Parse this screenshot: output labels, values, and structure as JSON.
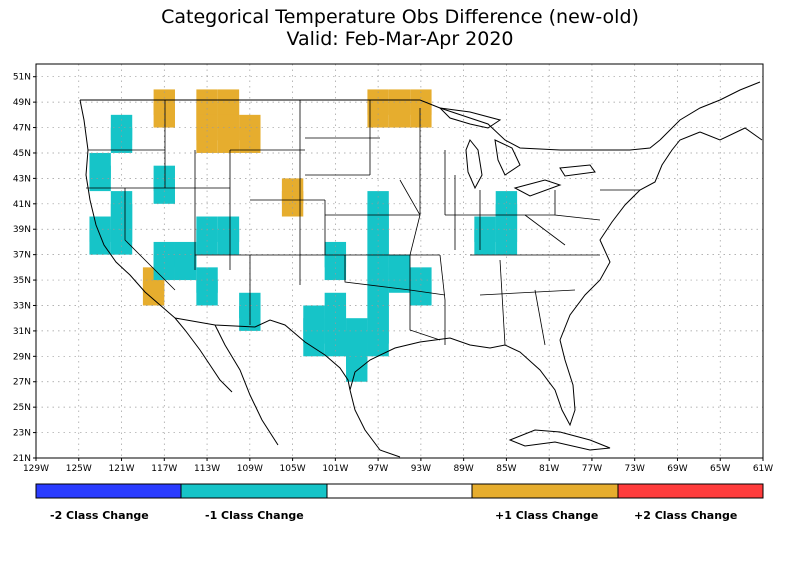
{
  "title": {
    "line1": "Categorical Temperature Obs Difference (new-old)",
    "line2": "Valid: Feb-Mar-Apr 2020"
  },
  "colors": {
    "minus2": "#2a3cff",
    "minus1": "#16c4c8",
    "zero": "#ffffff",
    "plus1": "#e6ad2e",
    "plus2": "#ff3c3c",
    "grid": "#9a9a9a",
    "outline": "#000000"
  },
  "axes": {
    "lon_min": -129,
    "lon_max": -61,
    "lat_min": 21,
    "lat_max": 52,
    "lon_ticks": [
      "129W",
      "125W",
      "121W",
      "117W",
      "113W",
      "109W",
      "105W",
      "101W",
      "97W",
      "93W",
      "89W",
      "85W",
      "81W",
      "77W",
      "73W",
      "69W",
      "65W",
      "61W"
    ],
    "lat_ticks": [
      "51N",
      "49N",
      "47N",
      "45N",
      "43N",
      "41N",
      "39N",
      "37N",
      "35N",
      "33N",
      "31N",
      "29N",
      "27N",
      "25N",
      "23N",
      "21N"
    ]
  },
  "legend": {
    "labels": [
      "-2 Class Change",
      "-1 Class Change",
      "+1 Class Change",
      "+2 Class Change"
    ]
  },
  "cells": {
    "plus1": [
      [
        -117,
        49
      ],
      [
        -117,
        48
      ],
      [
        -113,
        49
      ],
      [
        -111,
        49
      ],
      [
        -113,
        48
      ],
      [
        -111,
        48
      ],
      [
        -113,
        47
      ],
      [
        -111,
        47
      ],
      [
        -109,
        47
      ],
      [
        -113,
        46
      ],
      [
        -111,
        46
      ],
      [
        -109,
        46
      ],
      [
        -105,
        42
      ],
      [
        -105,
        41
      ],
      [
        -97,
        49
      ],
      [
        -95,
        49
      ],
      [
        -93,
        49
      ],
      [
        -97,
        48
      ],
      [
        -95,
        48
      ],
      [
        -93,
        48
      ],
      [
        -118,
        35
      ],
      [
        -118,
        34
      ]
    ],
    "minus1": [
      [
        -121,
        47
      ],
      [
        -121,
        46
      ],
      [
        -123,
        44
      ],
      [
        -123,
        43
      ],
      [
        -117,
        43
      ],
      [
        -117,
        42
      ],
      [
        -121,
        41
      ],
      [
        -121,
        40
      ],
      [
        -123,
        39
      ],
      [
        -121,
        39
      ],
      [
        -123,
        38
      ],
      [
        -121,
        38
      ],
      [
        -113,
        39
      ],
      [
        -111,
        39
      ],
      [
        -113,
        38
      ],
      [
        -111,
        38
      ],
      [
        -117,
        37
      ],
      [
        -115,
        37
      ],
      [
        -117,
        36
      ],
      [
        -115,
        36
      ],
      [
        -113,
        35
      ],
      [
        -113,
        34
      ],
      [
        -109,
        33
      ],
      [
        -109,
        32
      ],
      [
        -101,
        37
      ],
      [
        -101,
        36
      ],
      [
        -101,
        33
      ],
      [
        -103,
        32
      ],
      [
        -101,
        32
      ],
      [
        -103,
        31
      ],
      [
        -101,
        31
      ],
      [
        -99,
        31
      ],
      [
        -97,
        31
      ],
      [
        -103,
        30
      ],
      [
        -101,
        30
      ],
      [
        -99,
        30
      ],
      [
        -97,
        30
      ],
      [
        -99,
        29
      ],
      [
        -99,
        28
      ],
      [
        -97,
        33
      ],
      [
        -97,
        32
      ],
      [
        -97,
        41
      ],
      [
        -97,
        40
      ],
      [
        -97,
        39
      ],
      [
        -97,
        38
      ],
      [
        -97,
        37
      ],
      [
        -97,
        36
      ],
      [
        -95,
        36
      ],
      [
        -97,
        35
      ],
      [
        -95,
        35
      ],
      [
        -97,
        34
      ],
      [
        -93,
        35
      ],
      [
        -93,
        34
      ],
      [
        -85,
        41
      ],
      [
        -85,
        40
      ],
      [
        -87,
        39
      ],
      [
        -85,
        39
      ],
      [
        -87,
        38
      ],
      [
        -85,
        38
      ]
    ]
  }
}
